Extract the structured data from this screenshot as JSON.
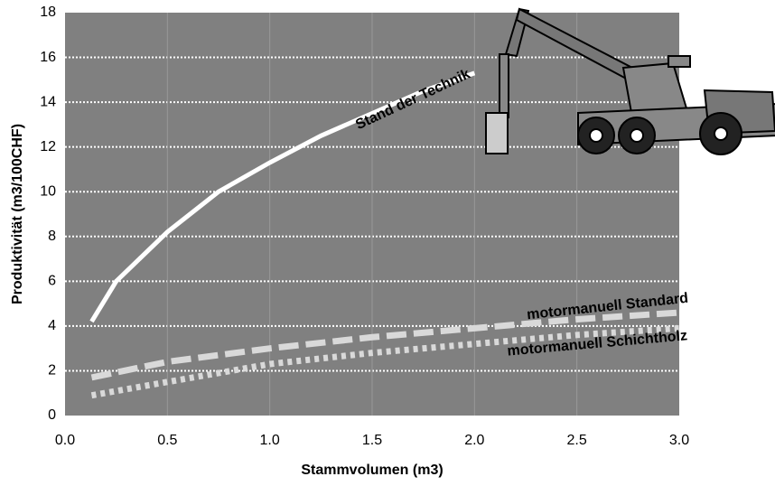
{
  "chart_data": {
    "type": "line",
    "xlabel": "Stammvolumen (m3)",
    "ylabel": "Produktivität (m3/100CHF)",
    "xlim": [
      0,
      3
    ],
    "ylim": [
      0,
      18
    ],
    "xticks": [
      {
        "value": 0,
        "label": "0.0"
      },
      0.5,
      {
        "value": 1,
        "label": "1.0"
      },
      1.5,
      {
        "value": 2,
        "label": "2.0"
      },
      2.5,
      {
        "value": 3,
        "label": "3.0"
      }
    ],
    "yticks": [
      0,
      2,
      4,
      6,
      8,
      10,
      12,
      14,
      16,
      18
    ],
    "grid": true,
    "background": "#808080",
    "series": [
      {
        "name": "Stand der Technik",
        "color": "#ffffff",
        "style": "solid",
        "x": [
          0.13,
          0.25,
          0.5,
          0.75,
          1.0,
          1.25,
          1.5,
          1.75,
          2.0
        ],
        "values": [
          4.2,
          6.0,
          8.2,
          10.0,
          11.3,
          12.5,
          13.5,
          14.5,
          15.3
        ]
      },
      {
        "name": "motormanuell Standard",
        "color": "#d9d9d9",
        "style": "dashed",
        "x": [
          0.13,
          0.5,
          1.0,
          1.5,
          2.0,
          2.5,
          3.0
        ],
        "values": [
          1.7,
          2.4,
          3.0,
          3.5,
          3.9,
          4.3,
          4.6
        ]
      },
      {
        "name": "motormanuell Schichtholz",
        "color": "#d9d9d9",
        "style": "dotted",
        "x": [
          0.13,
          0.5,
          1.0,
          1.5,
          2.0,
          2.5,
          3.0
        ],
        "values": [
          0.9,
          1.5,
          2.3,
          2.8,
          3.2,
          3.6,
          3.9
        ]
      }
    ]
  }
}
